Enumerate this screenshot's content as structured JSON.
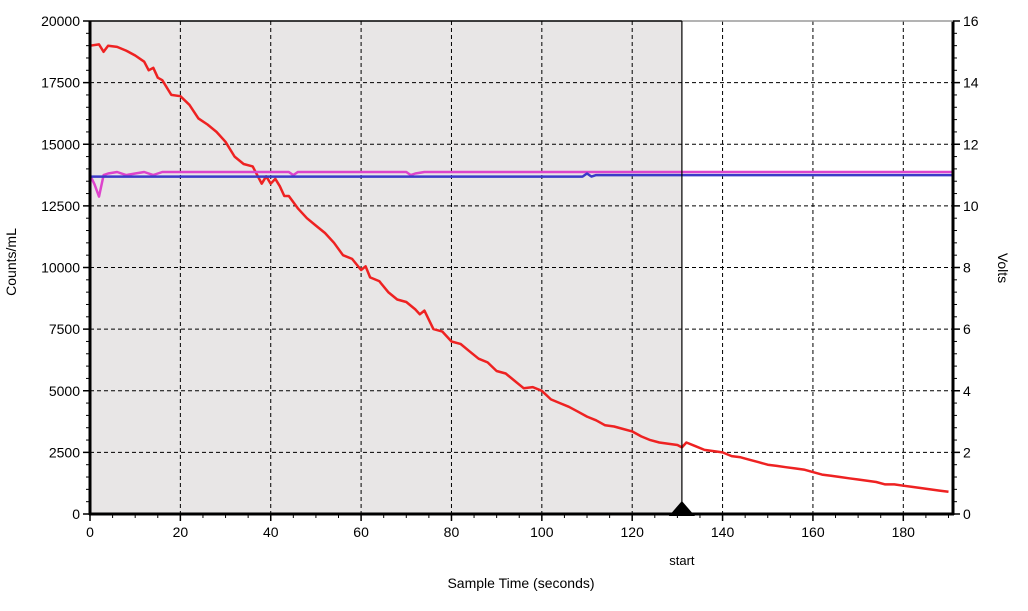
{
  "chart_data": {
    "type": "line",
    "xlabel": "Sample Time (seconds)",
    "ylabel_left": "Counts/mL",
    "ylabel_right": "Volts",
    "xlim": [
      0,
      191
    ],
    "ylim_left": [
      0,
      20000
    ],
    "ylim_right": [
      0,
      16
    ],
    "x_ticks": [
      0,
      20,
      40,
      60,
      80,
      100,
      120,
      140,
      160,
      180
    ],
    "y_left_ticks": [
      0,
      2500,
      5000,
      7500,
      10000,
      12500,
      15000,
      17500,
      20000
    ],
    "y_right_ticks": [
      0,
      2,
      4,
      6,
      8,
      10,
      12,
      14,
      16
    ],
    "grid": true,
    "grid_style": "dashed",
    "shaded_region": {
      "x_from": 0,
      "x_to": 131,
      "color": "#e8e6e6"
    },
    "marker": {
      "x": 131,
      "label": "start"
    },
    "series": [
      {
        "axis": "left",
        "color": "#ee2222",
        "x": [
          0,
          2,
          3,
          4,
          6,
          8,
          10,
          12,
          13,
          14,
          15,
          16,
          18,
          20,
          22,
          24,
          26,
          28,
          30,
          32,
          34,
          36,
          38,
          39,
          40,
          41,
          42,
          43,
          44,
          46,
          48,
          50,
          52,
          54,
          56,
          58,
          60,
          61,
          62,
          64,
          66,
          68,
          70,
          72,
          73,
          74,
          76,
          78,
          80,
          82,
          84,
          86,
          88,
          90,
          92,
          94,
          96,
          98,
          100,
          102,
          104,
          106,
          108,
          110,
          112,
          114,
          116,
          118,
          120,
          122,
          124,
          126,
          128,
          130,
          131,
          132,
          134,
          136,
          138,
          140,
          142,
          144,
          146,
          148,
          150,
          152,
          154,
          156,
          158,
          160,
          162,
          164,
          166,
          168,
          170,
          172,
          174,
          176,
          178,
          180,
          182,
          184,
          186,
          188,
          190
        ],
        "values": [
          19000,
          19050,
          18750,
          19000,
          18950,
          18800,
          18600,
          18350,
          18000,
          18100,
          17700,
          17600,
          17000,
          16950,
          16600,
          16050,
          15800,
          15500,
          15100,
          14500,
          14200,
          14100,
          13400,
          13700,
          13400,
          13600,
          13300,
          12900,
          12900,
          12400,
          12000,
          11700,
          11400,
          11000,
          10500,
          10350,
          9900,
          10050,
          9600,
          9450,
          9000,
          8700,
          8600,
          8300,
          8100,
          8250,
          7500,
          7400,
          7000,
          6900,
          6600,
          6300,
          6150,
          5800,
          5700,
          5400,
          5100,
          5150,
          5000,
          4650,
          4500,
          4350,
          4150,
          3950,
          3800,
          3600,
          3550,
          3450,
          3350,
          3150,
          3000,
          2900,
          2850,
          2800,
          2700,
          2900,
          2750,
          2600,
          2550,
          2500,
          2350,
          2300,
          2200,
          2100,
          2000,
          1950,
          1900,
          1850,
          1800,
          1700,
          1600,
          1550,
          1500,
          1450,
          1400,
          1350,
          1300,
          1200,
          1200,
          1150,
          1100,
          1050,
          1000,
          950,
          900
        ]
      },
      {
        "axis": "right",
        "color": "#dd44cc",
        "x": [
          0,
          1,
          2,
          3,
          4,
          6,
          8,
          10,
          12,
          14,
          15,
          16,
          18,
          20,
          30,
          40,
          44,
          45,
          46,
          50,
          60,
          70,
          71,
          72,
          74,
          80,
          100,
          120,
          131,
          140,
          160,
          180,
          191
        ],
        "values": [
          11.0,
          10.7,
          10.3,
          11.0,
          11.05,
          11.1,
          11.0,
          11.05,
          11.1,
          11.0,
          11.05,
          11.1,
          11.1,
          11.1,
          11.1,
          11.1,
          11.1,
          11.0,
          11.1,
          11.1,
          11.1,
          11.1,
          11.0,
          11.05,
          11.1,
          11.1,
          11.1,
          11.1,
          11.1,
          11.1,
          11.1,
          11.1,
          11.1
        ]
      },
      {
        "axis": "right",
        "color": "#3b3bc8",
        "x": [
          0,
          20,
          40,
          60,
          80,
          100,
          109,
          110,
          111,
          112,
          120,
          131,
          140,
          160,
          180,
          191
        ],
        "values": [
          10.95,
          10.95,
          10.95,
          10.95,
          10.95,
          10.95,
          10.95,
          11.05,
          10.95,
          11.0,
          11.0,
          11.0,
          11.0,
          11.0,
          11.0,
          11.0
        ]
      }
    ]
  }
}
